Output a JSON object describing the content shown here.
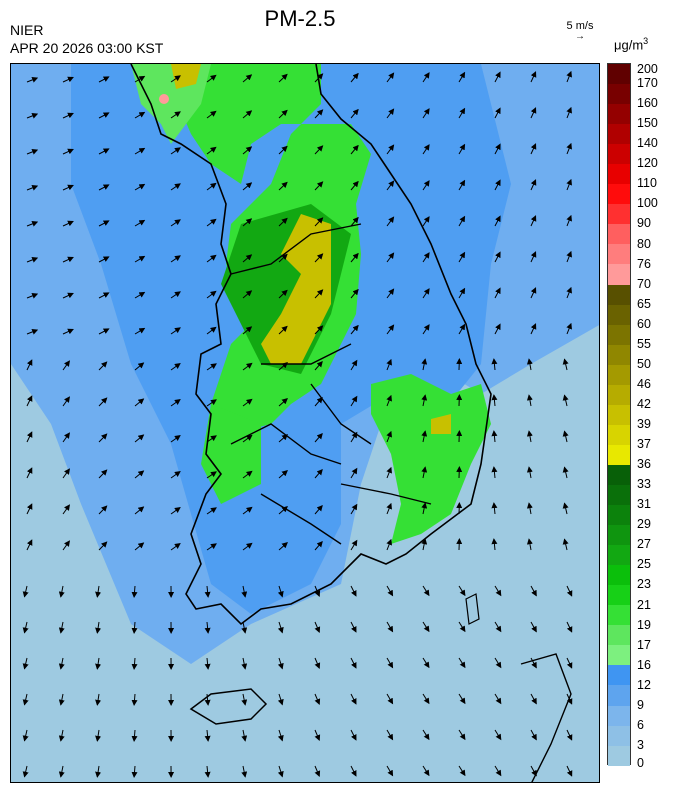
{
  "title": "PM-2.5",
  "agency": "NIER",
  "datetime": "APR 20 2026 03:00 KST",
  "wind_reference": {
    "label": "5 m/s",
    "arrow": "→"
  },
  "unit": {
    "base": "μg/m",
    "sup": "3"
  },
  "colorbar": {
    "levels": [
      "0",
      "3",
      "6",
      "9",
      "12",
      "16",
      "17",
      "19",
      "21",
      "23",
      "25",
      "27",
      "29",
      "31",
      "33",
      "36",
      "37",
      "39",
      "42",
      "46",
      "50",
      "55",
      "60",
      "65",
      "70",
      "76",
      "80",
      "90",
      "100",
      "110",
      "120",
      "140",
      "150",
      "160",
      "170",
      "200"
    ],
    "colors": [
      "#9ecae1",
      "#8ec0e6",
      "#7cb5ec",
      "#5ea4ee",
      "#3f95f2",
      "#7df07f",
      "#5ee65e",
      "#35e035",
      "#17d017",
      "#0bbf0b",
      "#12a812",
      "#0f950f",
      "#0c820c",
      "#0a700a",
      "#086008",
      "#e8e800",
      "#d8d400",
      "#c8c000",
      "#b6ac00",
      "#a49a00",
      "#908700",
      "#7c7400",
      "#6a6200",
      "#585000",
      "#ff9a9a",
      "#ff7d7d",
      "#ff5f5f",
      "#ff3030",
      "#ff0c0c",
      "#e80000",
      "#cc0000",
      "#b00000",
      "#940000",
      "#780000",
      "#600000"
    ]
  },
  "map": {
    "regions": "Korean Peninsula (southern part)",
    "layers": [
      "pm25-field",
      "coastline",
      "province-boundaries",
      "wind-vectors"
    ]
  }
}
